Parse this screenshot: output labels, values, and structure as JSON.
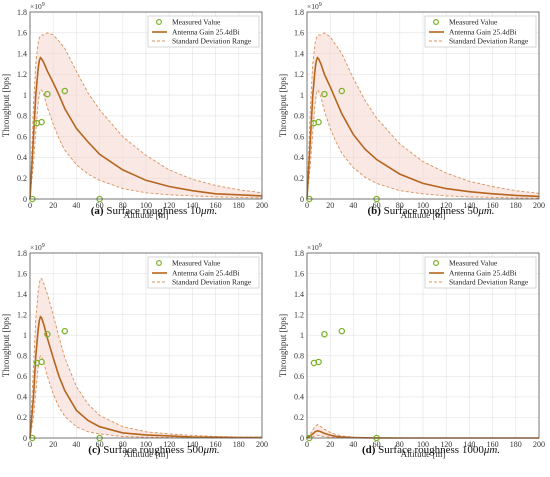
{
  "colors": {
    "model": "#b5651d",
    "dashed": "#d9925a",
    "fill": "#f5d5d0",
    "measured": "#7cb32a",
    "grid": "#e3e3e3",
    "axis": "#555555"
  },
  "shared": {
    "xlabel": "Altitude [m]",
    "ylabel": "Throughput [bps]",
    "y_exponent_text": "×10",
    "y_exponent_power": "9",
    "legend": {
      "measured": "Measured Value",
      "model": "Antenna Gain 25.4dBi",
      "range": "Standard Deviation Range"
    },
    "x_ticks": [
      0,
      20,
      40,
      60,
      80,
      100,
      120,
      140,
      160,
      180,
      200
    ],
    "y_ticks": [
      0,
      0.2,
      0.4,
      0.6,
      0.8,
      1,
      1.2,
      1.4,
      1.6,
      1.8
    ],
    "xlim": [
      0,
      200
    ],
    "ylim": [
      0,
      1.8
    ]
  },
  "chart_data": [
    {
      "type": "line",
      "caption_label": "(a)",
      "caption_text": "Surface roughness 10",
      "caption_unit": "μm.",
      "measured": {
        "x": [
          2,
          6,
          10,
          15,
          30,
          60
        ],
        "y": [
          0,
          0.73,
          0.74,
          1.01,
          1.04,
          0
        ]
      },
      "model": {
        "x": [
          0,
          3,
          5,
          7,
          8,
          9,
          10,
          12,
          15,
          20,
          25,
          30,
          40,
          50,
          60,
          80,
          100,
          120,
          140,
          160,
          180,
          200
        ],
        "y": [
          0,
          0.6,
          1.0,
          1.25,
          1.33,
          1.36,
          1.35,
          1.31,
          1.23,
          1.12,
          1.0,
          0.87,
          0.68,
          0.55,
          0.43,
          0.28,
          0.18,
          0.12,
          0.08,
          0.05,
          0.04,
          0.03
        ]
      },
      "upper": {
        "x": [
          0,
          3,
          5,
          7,
          8,
          9,
          10,
          12,
          15,
          20,
          25,
          30,
          40,
          50,
          60,
          80,
          100,
          120,
          140,
          160,
          180,
          200
        ],
        "y": [
          0,
          0.9,
          1.3,
          1.5,
          1.55,
          1.57,
          1.58,
          1.58,
          1.6,
          1.58,
          1.52,
          1.45,
          1.23,
          1.02,
          0.86,
          0.6,
          0.42,
          0.28,
          0.19,
          0.13,
          0.09,
          0.06
        ]
      },
      "lower": {
        "x": [
          0,
          3,
          5,
          7,
          8,
          9,
          10,
          12,
          15,
          20,
          25,
          30,
          40,
          50,
          60,
          80,
          100,
          120,
          140,
          160,
          180,
          200
        ],
        "y": [
          0,
          0.35,
          0.65,
          0.92,
          1.0,
          1.05,
          1.05,
          1.0,
          0.88,
          0.72,
          0.58,
          0.47,
          0.33,
          0.24,
          0.18,
          0.1,
          0.06,
          0.04,
          0.03,
          0.02,
          0.015,
          0.01
        ]
      }
    },
    {
      "type": "line",
      "caption_label": "(b)",
      "caption_text": "Surface roughness 50",
      "caption_unit": "μm.",
      "measured": {
        "x": [
          2,
          6,
          10,
          15,
          30,
          60
        ],
        "y": [
          0,
          0.73,
          0.74,
          1.01,
          1.04,
          0
        ]
      },
      "model": {
        "x": [
          0,
          3,
          5,
          7,
          8,
          9,
          10,
          12,
          15,
          20,
          25,
          30,
          40,
          50,
          60,
          80,
          100,
          120,
          140,
          160,
          180,
          200
        ],
        "y": [
          0,
          0.6,
          1.0,
          1.25,
          1.33,
          1.36,
          1.35,
          1.3,
          1.2,
          1.08,
          0.95,
          0.82,
          0.62,
          0.48,
          0.38,
          0.24,
          0.15,
          0.1,
          0.07,
          0.05,
          0.035,
          0.025
        ]
      },
      "upper": {
        "x": [
          0,
          3,
          5,
          7,
          8,
          9,
          10,
          12,
          15,
          20,
          25,
          30,
          40,
          50,
          60,
          80,
          100,
          120,
          140,
          160,
          180,
          200
        ],
        "y": [
          0,
          0.9,
          1.3,
          1.5,
          1.55,
          1.57,
          1.58,
          1.58,
          1.6,
          1.56,
          1.48,
          1.4,
          1.16,
          0.95,
          0.78,
          0.53,
          0.36,
          0.25,
          0.17,
          0.12,
          0.08,
          0.055
        ]
      },
      "lower": {
        "x": [
          0,
          3,
          5,
          7,
          8,
          9,
          10,
          12,
          15,
          20,
          25,
          30,
          40,
          50,
          60,
          80,
          100,
          120,
          140,
          160,
          180,
          200
        ],
        "y": [
          0,
          0.35,
          0.65,
          0.92,
          1.0,
          1.05,
          1.04,
          0.98,
          0.85,
          0.68,
          0.55,
          0.44,
          0.3,
          0.21,
          0.15,
          0.08,
          0.05,
          0.03,
          0.02,
          0.015,
          0.01,
          0.008
        ]
      }
    },
    {
      "type": "line",
      "caption_label": "(c)",
      "caption_text": "Surface roughness 500",
      "caption_unit": "μm.",
      "measured": {
        "x": [
          2,
          6,
          10,
          15,
          30,
          60
        ],
        "y": [
          0,
          0.73,
          0.74,
          1.01,
          1.04,
          0
        ]
      },
      "model": {
        "x": [
          0,
          3,
          5,
          7,
          8,
          9,
          10,
          12,
          15,
          20,
          25,
          30,
          40,
          50,
          60,
          80,
          100,
          120,
          140,
          160,
          180,
          200
        ],
        "y": [
          0,
          0.4,
          0.8,
          1.05,
          1.14,
          1.18,
          1.17,
          1.1,
          0.97,
          0.78,
          0.6,
          0.46,
          0.27,
          0.17,
          0.11,
          0.05,
          0.03,
          0.02,
          0.01,
          0.008,
          0.005,
          0.004
        ]
      },
      "upper": {
        "x": [
          0,
          3,
          5,
          7,
          8,
          9,
          10,
          12,
          15,
          20,
          25,
          30,
          40,
          50,
          60,
          80,
          100,
          120,
          140,
          160,
          180,
          200
        ],
        "y": [
          0,
          0.7,
          1.15,
          1.42,
          1.5,
          1.55,
          1.55,
          1.5,
          1.4,
          1.2,
          0.98,
          0.78,
          0.5,
          0.33,
          0.22,
          0.11,
          0.06,
          0.04,
          0.025,
          0.015,
          0.01,
          0.008
        ]
      },
      "lower": {
        "x": [
          0,
          3,
          5,
          7,
          8,
          9,
          10,
          12,
          15,
          20,
          25,
          30,
          40,
          50,
          60,
          80,
          100,
          120,
          140,
          160,
          180,
          200
        ],
        "y": [
          0,
          0.2,
          0.45,
          0.68,
          0.76,
          0.8,
          0.79,
          0.73,
          0.6,
          0.43,
          0.3,
          0.21,
          0.11,
          0.06,
          0.04,
          0.015,
          0.008,
          0.005,
          0.003,
          0.002,
          0.001,
          0.001
        ]
      }
    },
    {
      "type": "line",
      "caption_label": "(d)",
      "caption_text": "Surface roughness 1000",
      "caption_unit": "μm.",
      "measured": {
        "x": [
          2,
          6,
          10,
          15,
          30,
          60
        ],
        "y": [
          0,
          0.73,
          0.74,
          1.01,
          1.04,
          0
        ]
      },
      "model": {
        "x": [
          0,
          3,
          5,
          7,
          8,
          9,
          10,
          12,
          15,
          20,
          25,
          30,
          40,
          50,
          60,
          80,
          100,
          120,
          140,
          160,
          180,
          200
        ],
        "y": [
          0,
          0.02,
          0.04,
          0.06,
          0.065,
          0.07,
          0.068,
          0.06,
          0.045,
          0.028,
          0.016,
          0.01,
          0.004,
          0.002,
          0.001,
          0,
          0,
          0,
          0,
          0,
          0,
          0
        ]
      },
      "upper": {
        "x": [
          0,
          3,
          5,
          7,
          8,
          9,
          10,
          12,
          15,
          20,
          25,
          30,
          40,
          50,
          60,
          80,
          100,
          120,
          140,
          160,
          180,
          200
        ],
        "y": [
          0,
          0.04,
          0.08,
          0.11,
          0.12,
          0.13,
          0.125,
          0.11,
          0.085,
          0.055,
          0.033,
          0.02,
          0.008,
          0.004,
          0.002,
          0,
          0,
          0,
          0,
          0,
          0,
          0
        ]
      },
      "lower": {
        "x": [
          0,
          3,
          5,
          7,
          8,
          9,
          10,
          12,
          15,
          20,
          25,
          30,
          40,
          50,
          60,
          80,
          100,
          120,
          140,
          160,
          180,
          200
        ],
        "y": [
          0,
          0.005,
          0.012,
          0.02,
          0.024,
          0.026,
          0.025,
          0.02,
          0.014,
          0.008,
          0.004,
          0.002,
          0.001,
          0,
          0,
          0,
          0,
          0,
          0,
          0,
          0,
          0
        ]
      }
    }
  ]
}
